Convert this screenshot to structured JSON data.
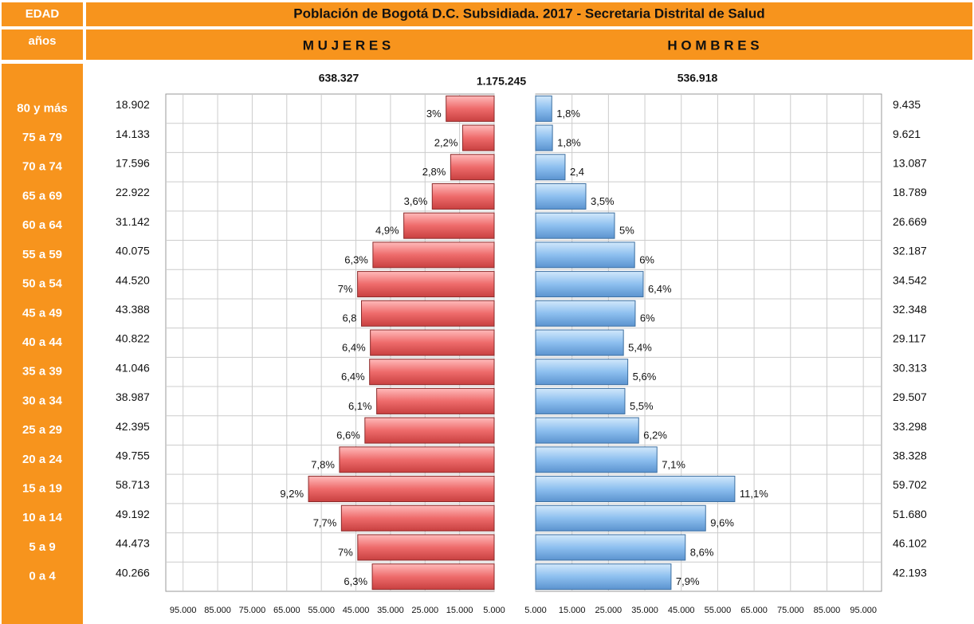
{
  "chart_data": {
    "type": "pyramid",
    "title": "Población de Bogotá D.C. Subsidiada. 2017 - Secretaria Distrital de Salud",
    "age_header": "EDAD",
    "age_subheader": "años",
    "total": {
      "value": 1175245,
      "label": "1.175.245"
    },
    "categories": [
      "80 y más",
      "75 a 79",
      "70 a 74",
      "65 a 69",
      "60 a 64",
      "55 a 59",
      "50 a 54",
      "45 a 49",
      "40 a 44",
      "35 a 39",
      "30 a 34",
      "25 a 29",
      "20 a 24",
      "15 a 19",
      "10 a 14",
      "5 a 9",
      "0 a 4"
    ],
    "series": [
      {
        "name": "M U J E R E S",
        "color": "#ee6b6b",
        "total": {
          "value": 638327,
          "label": "638.327"
        },
        "values": [
          18902,
          14133,
          17596,
          22922,
          31142,
          40075,
          44520,
          43388,
          40822,
          41046,
          38987,
          42395,
          49755,
          58713,
          49192,
          44473,
          40266
        ],
        "value_labels": [
          "18.902",
          "14.133",
          "17.596",
          "22.922",
          "31.142",
          "40.075",
          "44.520",
          "43.388",
          "40.822",
          "41.046",
          "38.987",
          "42.395",
          "49.755",
          "58.713",
          "49.192",
          "44.473",
          "40.266"
        ],
        "percents": [
          3,
          2.2,
          2.8,
          3.6,
          4.9,
          6.3,
          7,
          6.8,
          6.4,
          6.4,
          6.1,
          6.6,
          7.8,
          9.2,
          7.7,
          7,
          6.3
        ],
        "percent_labels": [
          "3%",
          "2,2%",
          "2,8%",
          "3,6%",
          "4,9%",
          "6,3%",
          "7%",
          "6,8",
          "6,4%",
          "6,4%",
          "6,1%",
          "6,6%",
          "7,8%",
          "9,2%",
          "7,7%",
          "7%",
          "6,3%"
        ]
      },
      {
        "name": "H O M B R E S",
        "color": "#8dbfef",
        "total": {
          "value": 536918,
          "label": "536.918"
        },
        "values": [
          9435,
          9621,
          13087,
          18789,
          26669,
          32187,
          34542,
          32348,
          29117,
          30313,
          29507,
          33298,
          38328,
          59702,
          51680,
          46102,
          42193
        ],
        "value_labels": [
          "9.435",
          "9.621",
          "13.087",
          "18.789",
          "26.669",
          "32.187",
          "34.542",
          "32.348",
          "29.117",
          "30.313",
          "29.507",
          "33.298",
          "38.328",
          "59.702",
          "51.680",
          "46.102",
          "42.193"
        ],
        "percents": [
          1.8,
          1.8,
          2.4,
          3.5,
          5,
          6,
          6.4,
          6,
          5.4,
          5.6,
          5.5,
          6.2,
          7.1,
          11.1,
          9.6,
          8.6,
          7.9
        ],
        "percent_labels": [
          "1,8%",
          "1,8%",
          "2,4",
          "3,5%",
          "5%",
          "6%",
          "6,4%",
          "6%",
          "5,4%",
          "5,6%",
          "5,5%",
          "6,2%",
          "7,1%",
          "11,1%",
          "9,6%",
          "8,6%",
          "7,9%"
        ]
      }
    ],
    "xlim": [
      5000,
      100000
    ],
    "xticks": [
      {
        "value": 95000,
        "label": "95.000"
      },
      {
        "value": 85000,
        "label": "85.000"
      },
      {
        "value": 75000,
        "label": "75.000"
      },
      {
        "value": 65000,
        "label": "65.000"
      },
      {
        "value": 55000,
        "label": "55.000"
      },
      {
        "value": 45000,
        "label": "45.000"
      },
      {
        "value": 35000,
        "label": "35.000"
      },
      {
        "value": 25000,
        "label": "25.000"
      },
      {
        "value": 15000,
        "label": "15.000"
      },
      {
        "value": 5000,
        "label": "5.000"
      }
    ],
    "grid": true
  }
}
